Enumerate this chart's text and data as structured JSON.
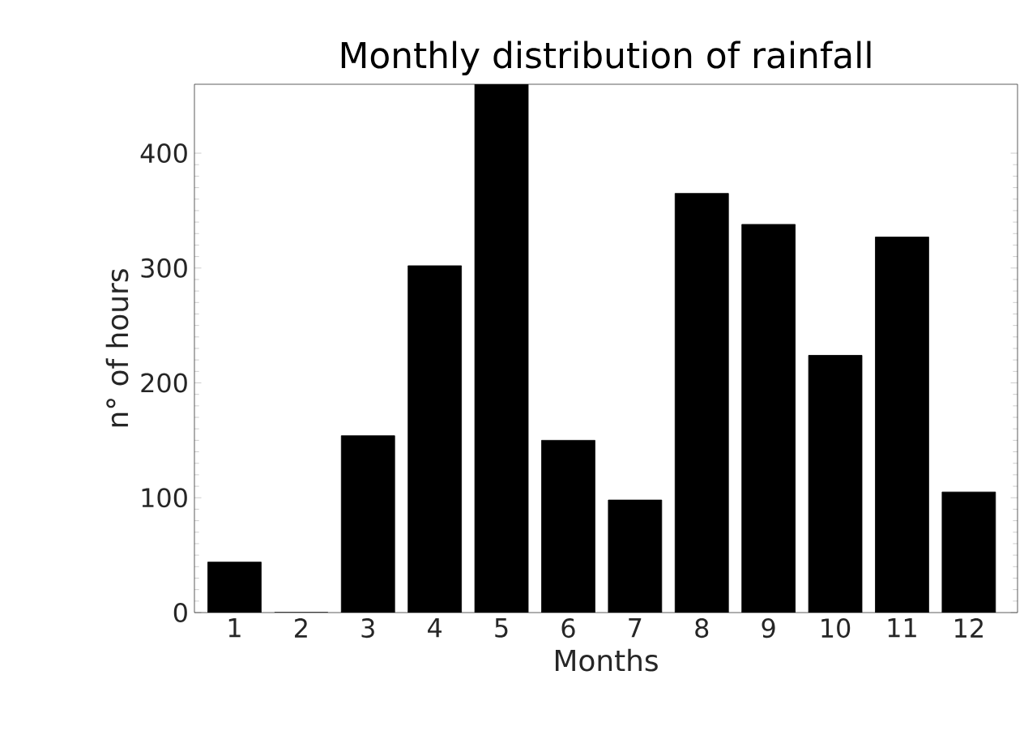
{
  "chart_data": {
    "type": "bar",
    "title": "Monthly distribution of rainfall",
    "xlabel": "Months",
    "ylabel": "n° of hours",
    "categories": [
      "1",
      "2",
      "3",
      "4",
      "5",
      "6",
      "7",
      "8",
      "9",
      "10",
      "11",
      "12"
    ],
    "values": [
      44,
      0,
      154,
      302,
      460,
      150,
      98,
      365,
      338,
      224,
      327,
      105
    ],
    "color": "#000000",
    "ylim": [
      0,
      460
    ],
    "yticks": [
      0,
      100,
      200,
      300,
      400
    ],
    "grid": false
  }
}
